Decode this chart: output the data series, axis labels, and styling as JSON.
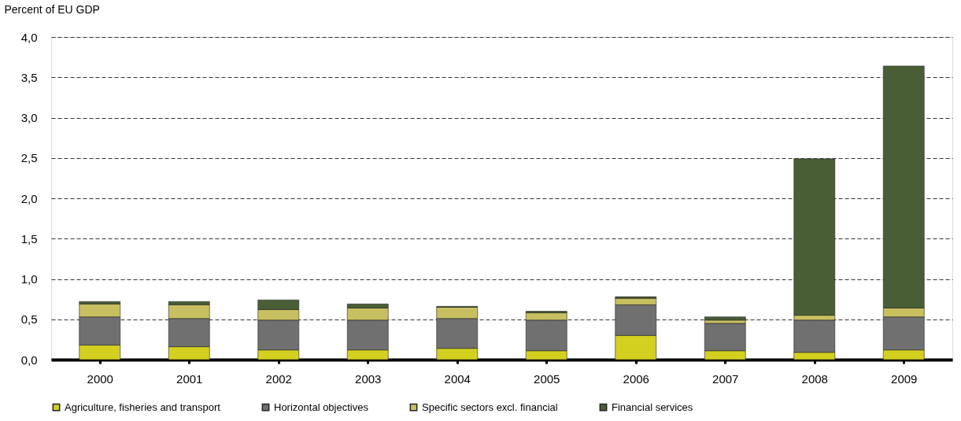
{
  "chart_data": {
    "type": "bar",
    "stacked": true,
    "ylabel": "Percent of EU GDP",
    "categories": [
      "2000",
      "2001",
      "2002",
      "2003",
      "2004",
      "2005",
      "2006",
      "2007",
      "2008",
      "2009"
    ],
    "series": [
      {
        "name": "Agriculture, fisheries and transport",
        "color": "#d4d020",
        "values": [
          0.18,
          0.16,
          0.12,
          0.12,
          0.14,
          0.11,
          0.3,
          0.11,
          0.09,
          0.12
        ]
      },
      {
        "name": "Horizontal objectives",
        "color": "#707070",
        "values": [
          0.35,
          0.35,
          0.37,
          0.37,
          0.37,
          0.38,
          0.38,
          0.34,
          0.4,
          0.41
        ]
      },
      {
        "name": "Specific sectors excl. financial",
        "color": "#c8c060",
        "values": [
          0.16,
          0.17,
          0.13,
          0.15,
          0.14,
          0.09,
          0.08,
          0.04,
          0.06,
          0.11
        ]
      },
      {
        "name": "Financial services",
        "color": "#4a5e36",
        "values": [
          0.03,
          0.04,
          0.12,
          0.05,
          0.01,
          0.02,
          0.02,
          0.04,
          1.94,
          3.0
        ]
      }
    ],
    "ylim": [
      0,
      4.0
    ],
    "yticks": [
      {
        "value": 0,
        "label": "0,0"
      },
      {
        "value": 0.5,
        "label": "0,5"
      },
      {
        "value": 1.0,
        "label": "1,0"
      },
      {
        "value": 1.5,
        "label": "1,5"
      },
      {
        "value": 2.0,
        "label": "2,0"
      },
      {
        "value": 2.5,
        "label": "2,5"
      },
      {
        "value": 3.0,
        "label": "3,0"
      },
      {
        "value": 3.5,
        "label": "3,5"
      },
      {
        "value": 4.0,
        "label": "4,0"
      }
    ],
    "grid": "y",
    "legend": "bottom"
  }
}
